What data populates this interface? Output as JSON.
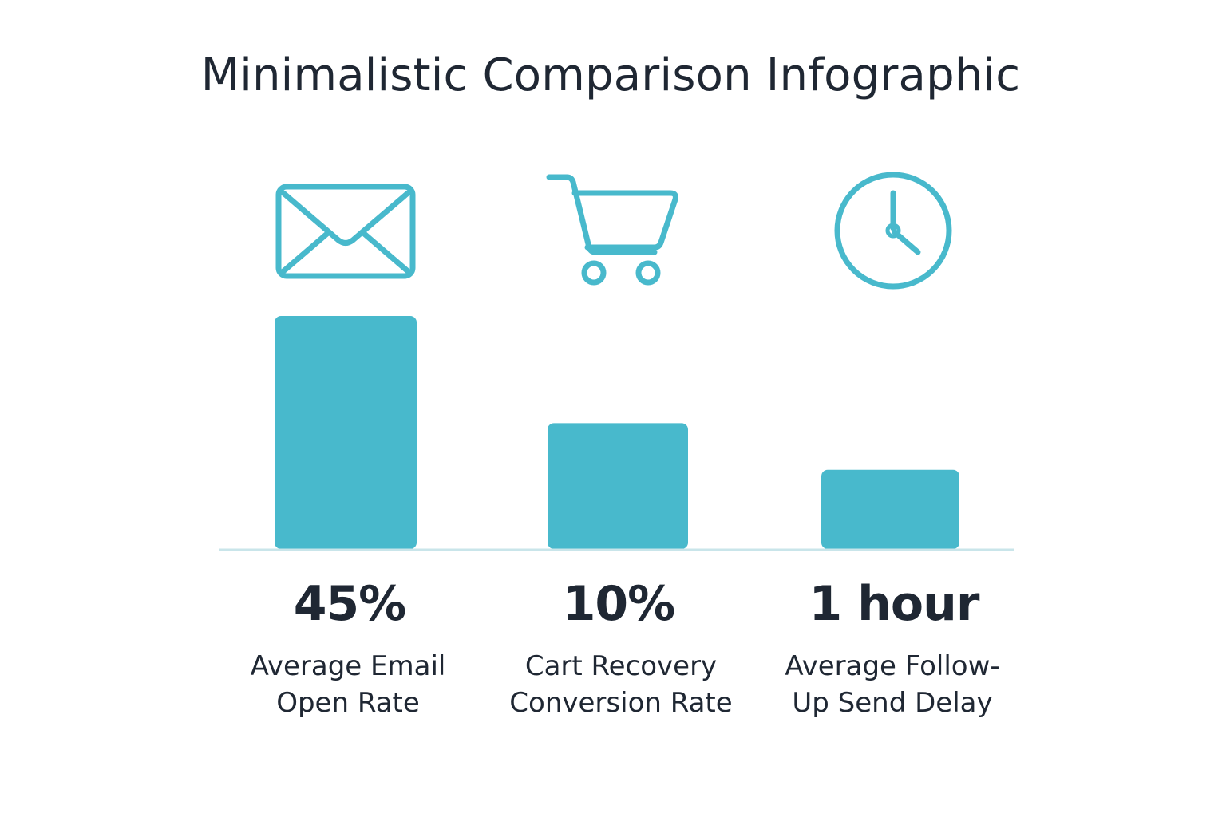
{
  "title": "Minimalistic Comparison Infographic",
  "colors": {
    "bar": "#48b9cc",
    "icon": "#48b9cc",
    "baseline": "#c9e5ea",
    "text": "#1f2733"
  },
  "chart_data": {
    "type": "bar",
    "title": "Minimalistic Comparison Infographic",
    "categories": [
      "Average Email Open Rate",
      "Cart Recovery Conversion Rate",
      "Average Follow-Up Send Delay"
    ],
    "value_labels": [
      "45%",
      "10%",
      "1 hour"
    ],
    "values": [
      45,
      10,
      1
    ],
    "units": [
      "%",
      "%",
      "hour"
    ],
    "relative_heights": [
      1.0,
      0.54,
      0.34
    ],
    "icons": [
      "envelope-icon",
      "shopping-cart-icon",
      "clock-icon"
    ],
    "grid": false,
    "legend": "none"
  },
  "items": [
    {
      "value": "45%",
      "label_line1": "Average Email",
      "label_line2": "Open Rate",
      "icon": "envelope-icon"
    },
    {
      "value": "10%",
      "label_line1": "Cart Recovery",
      "label_line2": "Conversion Rate",
      "icon": "shopping-cart-icon"
    },
    {
      "value": "1 hour",
      "label_line1": "Average Follow-",
      "label_line2": "Up Send Delay",
      "icon": "clock-icon"
    }
  ]
}
